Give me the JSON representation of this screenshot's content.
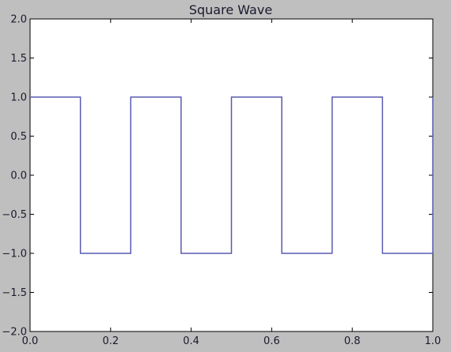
{
  "chart_data": {
    "type": "line",
    "title": "Square Wave",
    "xlabel": "",
    "ylabel": "",
    "xlim": [
      0.0,
      1.0
    ],
    "ylim": [
      -2.0,
      2.0
    ],
    "x_ticks": [
      "0.0",
      "0.2",
      "0.4",
      "0.6",
      "0.8",
      "1.0"
    ],
    "y_ticks": [
      "2.0",
      "1.5",
      "1.0",
      "0.5",
      "0.0",
      "−0.5",
      "−1.0",
      "−1.5",
      "−2.0"
    ],
    "x_tick_values": [
      0.0,
      0.2,
      0.4,
      0.6,
      0.8,
      1.0
    ],
    "y_tick_values": [
      2.0,
      1.5,
      1.0,
      0.5,
      0.0,
      -0.5,
      -1.0,
      -1.5,
      -2.0
    ],
    "grid": false,
    "series": [
      {
        "color": "#5a5ab0",
        "x": [
          0.0,
          0.125,
          0.125,
          0.25,
          0.25,
          0.375,
          0.375,
          0.5,
          0.5,
          0.625,
          0.625,
          0.75,
          0.75,
          0.875,
          0.875,
          1.0,
          1.0
        ],
        "y": [
          1.0,
          1.0,
          -1.0,
          -1.0,
          1.0,
          1.0,
          -1.0,
          -1.0,
          1.0,
          1.0,
          -1.0,
          -1.0,
          1.0,
          1.0,
          -1.0,
          -1.0,
          1.0
        ]
      }
    ]
  }
}
